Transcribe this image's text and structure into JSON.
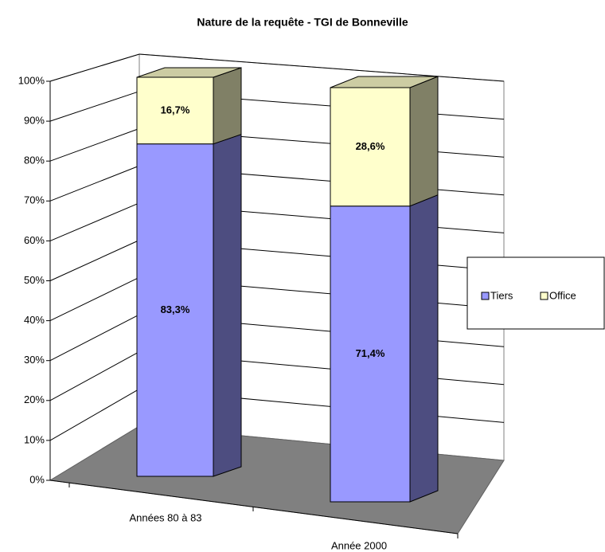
{
  "chart_data": {
    "type": "bar3d_stacked",
    "title": "Nature de la requête - TGI de Bonneville",
    "categories": [
      "Années 80 à 83",
      "Année 2000"
    ],
    "series": [
      {
        "name": "Tiers",
        "color": "#9999ff",
        "values": [
          83.3,
          71.4
        ],
        "value_labels": [
          "83,3%",
          "71,4%"
        ]
      },
      {
        "name": "Office",
        "color": "#ffffcc",
        "values": [
          16.7,
          28.6
        ],
        "value_labels": [
          "16,7%",
          "28,6%"
        ]
      }
    ],
    "ylim": [
      0,
      100
    ],
    "yticks": [
      {
        "value": 0,
        "label": "0%"
      },
      {
        "value": 10,
        "label": "10%"
      },
      {
        "value": 20,
        "label": "20%"
      },
      {
        "value": 30,
        "label": "30%"
      },
      {
        "value": 40,
        "label": "40%"
      },
      {
        "value": 50,
        "label": "50%"
      },
      {
        "value": 60,
        "label": "60%"
      },
      {
        "value": 70,
        "label": "70%"
      },
      {
        "value": 80,
        "label": "80%"
      },
      {
        "value": 90,
        "label": "90%"
      },
      {
        "value": 100,
        "label": "100%"
      }
    ],
    "grid": true,
    "legend": "right"
  }
}
